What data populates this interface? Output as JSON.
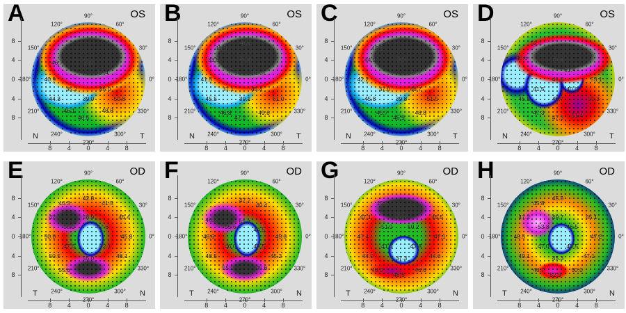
{
  "axis_ticks": [
    "8",
    "4",
    "0",
    "4",
    "8"
  ],
  "degree_labels": [
    "0°",
    "30°",
    "60°",
    "90°",
    "120°",
    "150°",
    "180°",
    "210°",
    "240°",
    "270°",
    "300°",
    "330°"
  ],
  "colors": {
    "panel_bg": "#dcdcdc",
    "low": "#99eeff",
    "mid": "#22bb33",
    "high": "#ff0000",
    "steep": "#333333"
  },
  "panels": [
    {
      "letter": "A",
      "eye": "OS",
      "left_corner": "N",
      "right_corner": "T",
      "values": [
        "73.5",
        "62.4",
        "46.7",
        "40.9",
        "35.2",
        "39.0",
        "45.0",
        "50.8",
        "44.3",
        "46.1",
        "46.5",
        "48.8"
      ]
    },
    {
      "letter": "B",
      "eye": "OS",
      "left_corner": "N",
      "right_corner": "T",
      "values": [
        "71.6",
        "60.3",
        "37.7",
        "41.5",
        "37.1",
        "39.1",
        "45.4",
        "51.0",
        "45.5",
        "46.8",
        "47.2",
        "49.6",
        "33.5",
        "46.9",
        "40.5"
      ]
    },
    {
      "letter": "C",
      "eye": "OS",
      "left_corner": "N",
      "right_corner": "T",
      "values": [
        "72.7",
        "62.2",
        "44.9",
        "45.8",
        "42.2",
        "37.0",
        "39.8",
        "46.7",
        "51.5",
        "45.8",
        "45.7",
        "46.9",
        "48.8"
      ]
    },
    {
      "letter": "D",
      "eye": "OS",
      "left_corner": "N",
      "right_corner": "T",
      "values": [
        "62.0",
        "52.1",
        "45.6",
        "61.4",
        "53.1",
        "41.5",
        "40.0",
        "46.7",
        "50.3",
        "45.5",
        "47.3",
        "47.3",
        "51.4",
        "41.8"
      ]
    },
    {
      "letter": "E",
      "eye": "OD",
      "left_corner": "T",
      "right_corner": "N",
      "values": [
        "42.8",
        "46.3",
        "41.5",
        "47.3",
        "45.4",
        "48.9",
        "55.9",
        "47.6",
        "50.0",
        "45.8",
        "47.6",
        "52.1",
        "45.0",
        "50.5",
        "46.1",
        "55.6"
      ]
    },
    {
      "letter": "F",
      "eye": "OD",
      "left_corner": "T",
      "right_corner": "N",
      "values": [
        "47.2",
        "40.4",
        "46.8",
        "55.6",
        "51.7",
        "44.5",
        "48.6",
        "45.6",
        "46.0",
        "49.5",
        "48.5",
        "45.2",
        "55.1",
        "45.6"
      ]
    },
    {
      "letter": "G",
      "eye": "OD",
      "left_corner": "T",
      "right_corner": "N",
      "values": [
        "45.6",
        "53.8",
        "47.1",
        "45.5",
        "51.9",
        "50.2",
        "47.4",
        "47.1",
        "41.6",
        "43.8",
        "37.3",
        "44.0",
        "44.6",
        "48.9",
        "48.5",
        "46.6"
      ]
    },
    {
      "letter": "H",
      "eye": "OD",
      "left_corner": "T",
      "right_corner": "N",
      "values": [
        "45.3",
        "45.8",
        "47.2",
        "49.7",
        "45.1",
        "53.8",
        "46.5",
        "48.5",
        "47.2",
        "47.0",
        "48.5",
        "45.3",
        "49.1",
        "47.1",
        "48.7",
        "52.9",
        "50.0"
      ]
    }
  ]
}
